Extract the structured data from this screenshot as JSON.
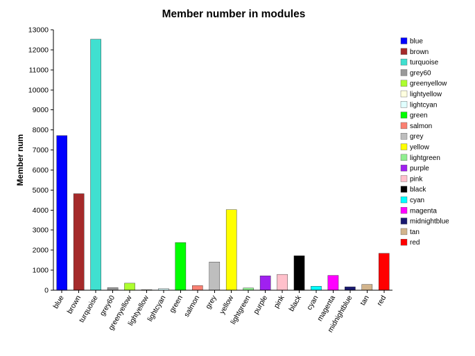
{
  "chart_data": {
    "type": "bar",
    "title": "Member number in modules",
    "xlabel": "",
    "ylabel": "Member num",
    "ylim": [
      0,
      13000
    ],
    "yticks": [
      0,
      1000,
      2000,
      3000,
      4000,
      5000,
      6000,
      7000,
      8000,
      9000,
      10000,
      11000,
      12000,
      13000
    ],
    "grid": false,
    "legend_position": "right",
    "categories": [
      "blue",
      "brown",
      "turquoise",
      "grey60",
      "greenyellow",
      "lightyellow",
      "lightcyan",
      "green",
      "salmon",
      "grey",
      "yellow",
      "lightgreen",
      "purple",
      "pink",
      "black",
      "cyan",
      "magenta",
      "midnightblue",
      "tan",
      "red"
    ],
    "values": [
      7720,
      4820,
      12530,
      130,
      350,
      30,
      80,
      2380,
      230,
      1410,
      4020,
      110,
      720,
      790,
      1720,
      200,
      740,
      170,
      290,
      1840
    ],
    "colors": [
      "#0000ff",
      "#a52a2a",
      "#40e0d0",
      "#999999",
      "#adff2f",
      "#ffffe0",
      "#e0ffff",
      "#00ff00",
      "#fa8072",
      "#bebebe",
      "#ffff00",
      "#90ee90",
      "#a020f0",
      "#ffc0cb",
      "#000000",
      "#00ffff",
      "#ff00ff",
      "#191970",
      "#d2b48c",
      "#ff0000"
    ]
  }
}
